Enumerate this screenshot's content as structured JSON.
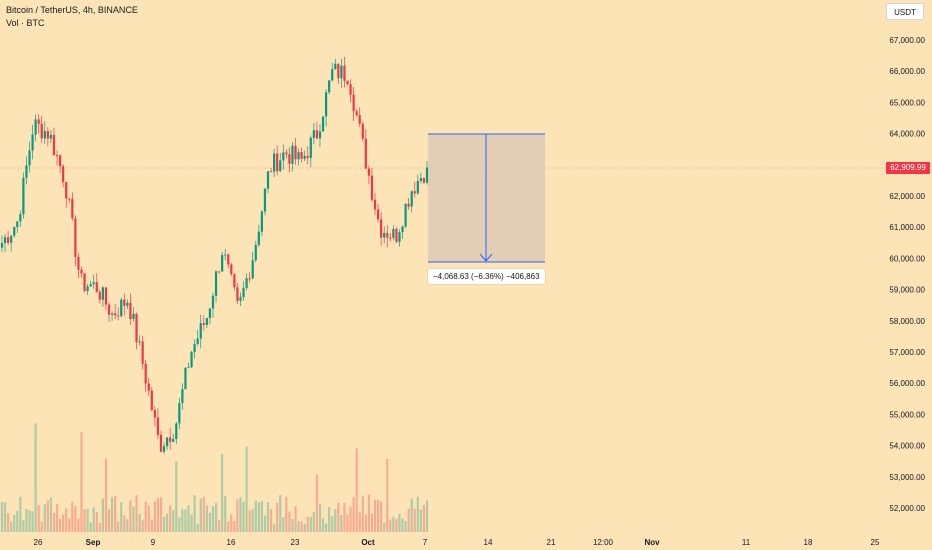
{
  "header": {
    "symbol_line": "Bitcoin / TetherUS, 4h, BINANCE",
    "volume_line": "Vol · BTC"
  },
  "price_scale": {
    "currency_button": "USDT",
    "current_price": "62,909.99",
    "ticks": [
      "67,000.00",
      "66,000.00",
      "65,000.00",
      "64,000.00",
      "62,000.00",
      "61,000.00",
      "60,000.00",
      "59,000.00",
      "58,000.00",
      "57,000.00",
      "56,000.00",
      "55,000.00",
      "54,000.00",
      "53,000.00",
      "52,000.00"
    ]
  },
  "time_scale": {
    "ticks": [
      "26",
      "Sep",
      "9",
      "16",
      "23",
      "Oct",
      "7",
      "14",
      "21",
      "12:00",
      "Nov",
      "11",
      "18",
      "25"
    ]
  },
  "measure_tool": {
    "label": "−4,068.63 (−6.36%) −406,863",
    "from_price": 63950,
    "to_price": 59880
  },
  "chart_data": {
    "type": "candlestick",
    "symbol": "BTCUSDT",
    "interval": "4h",
    "exchange": "BINANCE",
    "ylim": [
      51500,
      67600
    ],
    "last_price": 62909.99,
    "close_path": [
      {
        "date": "Aug 20",
        "close": 60500
      },
      {
        "date": "Aug 22",
        "close": 61200
      },
      {
        "date": "Aug 24",
        "close": 64300
      },
      {
        "date": "Aug 26",
        "close": 64000
      },
      {
        "date": "Aug 27",
        "close": 62500
      },
      {
        "date": "Aug 28",
        "close": 59200
      },
      {
        "date": "Aug 30",
        "close": 59100
      },
      {
        "date": "Sep 1",
        "close": 58200
      },
      {
        "date": "Sep 3",
        "close": 58700
      },
      {
        "date": "Sep 5",
        "close": 56500
      },
      {
        "date": "Sep 6",
        "close": 54000
      },
      {
        "date": "Sep 8",
        "close": 54600
      },
      {
        "date": "Sep 10",
        "close": 57000
      },
      {
        "date": "Sep 12",
        "close": 58100
      },
      {
        "date": "Sep 14",
        "close": 60300
      },
      {
        "date": "Sep 16",
        "close": 58300
      },
      {
        "date": "Sep 17",
        "close": 60200
      },
      {
        "date": "Sep 19",
        "close": 62900
      },
      {
        "date": "Sep 21",
        "close": 63400
      },
      {
        "date": "Sep 23",
        "close": 63100
      },
      {
        "date": "Sep 25",
        "close": 64000
      },
      {
        "date": "Sep 27",
        "close": 66000
      },
      {
        "date": "Sep 28",
        "close": 65900
      },
      {
        "date": "Sep 30",
        "close": 63400
      },
      {
        "date": "Oct 1",
        "close": 61000
      },
      {
        "date": "Oct 3",
        "close": 60700
      },
      {
        "date": "Oct 5",
        "close": 62200
      },
      {
        "date": "Oct 7",
        "close": 62910
      }
    ]
  },
  "colors": {
    "background": "#fde4b7",
    "up": "#089981",
    "down": "#f23645",
    "measure_line": "#2962ff",
    "measure_fill": "#d8c6b4"
  }
}
